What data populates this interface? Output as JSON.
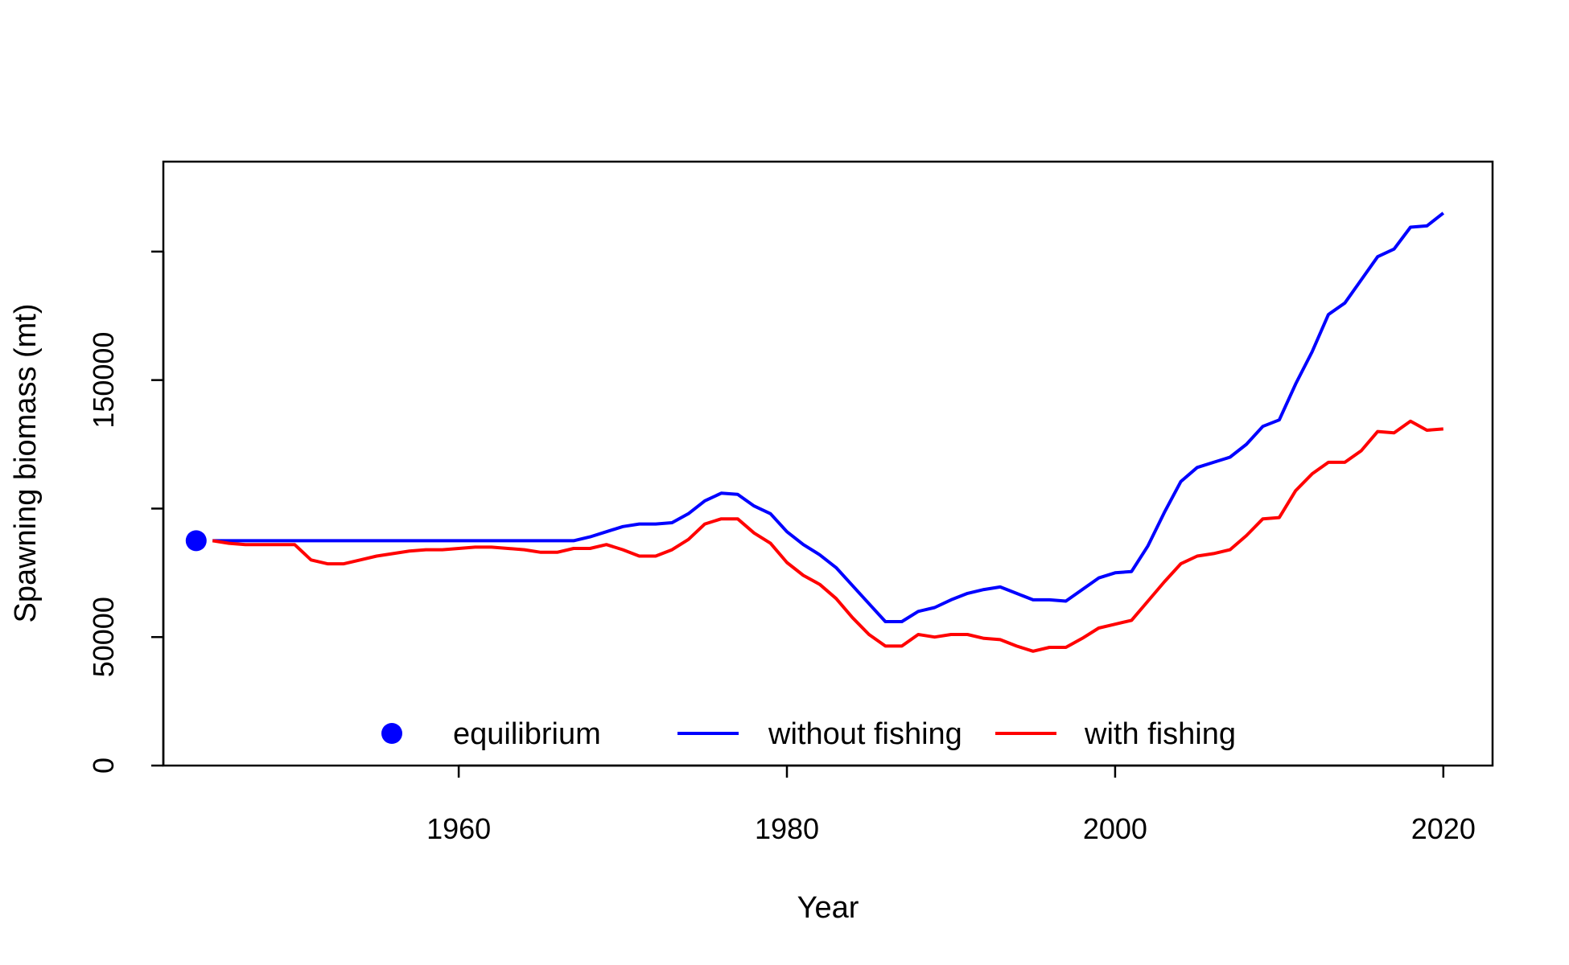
{
  "chart_data": {
    "type": "line",
    "title": "",
    "xlabel": "Year",
    "ylabel": "Spawning biomass (mt)",
    "xlim": [
      1942,
      2023
    ],
    "ylim": [
      0,
      235000
    ],
    "x_ticks": [
      1960,
      1980,
      2000,
      2020
    ],
    "x_tick_labels": [
      "1960",
      "1980",
      "2000",
      "2020"
    ],
    "y_ticks": [
      0,
      50000,
      100000,
      150000,
      200000
    ],
    "y_tick_labels": [
      "0",
      "50000",
      "",
      "150000",
      ""
    ],
    "grid": false,
    "legend": {
      "placement": "bottom-center",
      "entries": [
        {
          "label": "equilibrium",
          "symbol": "point",
          "color": "#0000ff"
        },
        {
          "label": "without fishing",
          "symbol": "line",
          "color": "#0000ff"
        },
        {
          "label": "with fishing",
          "symbol": "line",
          "color": "#ff0000"
        }
      ]
    },
    "points": [
      {
        "name": "equilibrium",
        "x": 1944,
        "y": 87500,
        "color": "#0000ff"
      }
    ],
    "x": [
      1945,
      1946,
      1947,
      1948,
      1949,
      1950,
      1951,
      1952,
      1953,
      1954,
      1955,
      1956,
      1957,
      1958,
      1959,
      1960,
      1961,
      1962,
      1963,
      1964,
      1965,
      1966,
      1967,
      1968,
      1969,
      1970,
      1971,
      1972,
      1973,
      1974,
      1975,
      1976,
      1977,
      1978,
      1979,
      1980,
      1981,
      1982,
      1983,
      1984,
      1985,
      1986,
      1987,
      1988,
      1989,
      1990,
      1991,
      1992,
      1993,
      1994,
      1995,
      1996,
      1997,
      1998,
      1999,
      2000,
      2001,
      2002,
      2003,
      2004,
      2005,
      2006,
      2007,
      2008,
      2009,
      2010,
      2011,
      2012,
      2013,
      2014,
      2015,
      2016,
      2017,
      2018,
      2019,
      2020
    ],
    "series": [
      {
        "name": "without fishing",
        "color": "#0000ff",
        "values": [
          87500,
          87500,
          87500,
          87500,
          87500,
          87500,
          87500,
          87500,
          87500,
          87500,
          87500,
          87500,
          87500,
          87500,
          87500,
          87500,
          87500,
          87500,
          87500,
          87500,
          87500,
          87500,
          87500,
          89000,
          91000,
          93000,
          94000,
          94000,
          94500,
          98000,
          103000,
          106000,
          105500,
          101000,
          98000,
          91000,
          86000,
          82000,
          77000,
          70000,
          63000,
          56000,
          56000,
          60000,
          61500,
          64500,
          67000,
          68500,
          69500,
          67000,
          64500,
          64500,
          64000,
          68500,
          73000,
          75000,
          75500,
          85500,
          98500,
          110500,
          116000,
          118000,
          120000,
          125000,
          132000,
          134500,
          148500,
          161000,
          175500,
          180000,
          189000,
          198000,
          201000,
          209500,
          210000,
          215000
        ]
      },
      {
        "name": "with fishing",
        "color": "#ff0000",
        "values": [
          87500,
          86500,
          86000,
          86000,
          86000,
          86000,
          80000,
          78500,
          78500,
          80000,
          81500,
          82500,
          83500,
          84000,
          84000,
          84500,
          85000,
          85000,
          84500,
          84000,
          83000,
          83000,
          84500,
          84500,
          86000,
          84000,
          81500,
          81500,
          84000,
          88000,
          94000,
          96000,
          96000,
          90500,
          86500,
          79000,
          74000,
          70500,
          65000,
          57500,
          51000,
          46500,
          46500,
          51000,
          50000,
          51000,
          51000,
          49500,
          49000,
          46500,
          44500,
          46000,
          46000,
          49500,
          53500,
          55000,
          56500,
          64000,
          71500,
          78500,
          81500,
          82500,
          84000,
          89500,
          96000,
          96500,
          107000,
          113500,
          118000,
          118000,
          122500,
          130000,
          129500,
          134000,
          130500,
          131000
        ]
      }
    ]
  }
}
